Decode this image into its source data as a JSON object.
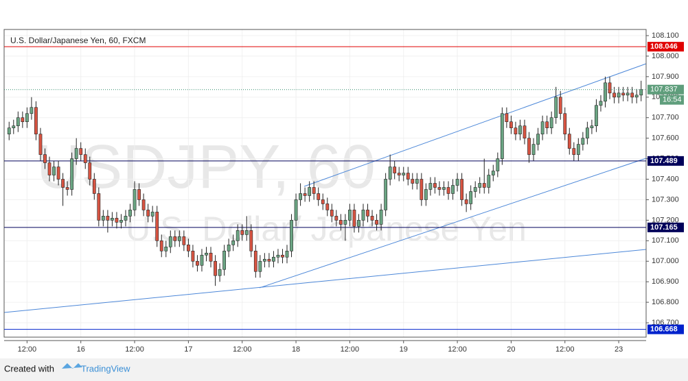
{
  "chart_data": {
    "type": "candlestick",
    "title": "U.S. Dollar/Japanese Yen, 60, FXCM",
    "watermark": "USDJPY, 60",
    "watermark_subtitle": "U.S. Dollar/ Japanese Yen",
    "footer": "Created with",
    "brand": "TradingView",
    "countdown": "16:54",
    "up_color": "#6ba583",
    "down_color": "#d75442",
    "categories": [
      null,
      null,
      null,
      null,
      "12:00",
      null,
      null,
      null,
      null,
      null,
      null,
      null,
      null,
      null,
      null,
      null,
      "16",
      null,
      null,
      null,
      null,
      null,
      null,
      null,
      null,
      null,
      null,
      null,
      "12:00",
      null,
      null,
      null,
      null,
      null,
      null,
      null,
      null,
      null,
      null,
      null,
      "17",
      null,
      null,
      null,
      null,
      null,
      null,
      null,
      null,
      null,
      null,
      null,
      "12:00",
      null,
      null,
      null,
      null,
      null,
      null,
      null,
      null,
      null,
      null,
      null,
      "18",
      null,
      null,
      null,
      null,
      null,
      null,
      null,
      null,
      null,
      null,
      null,
      "12:00",
      null,
      null,
      null,
      null,
      null,
      null,
      null,
      null,
      null,
      null,
      null,
      "19",
      null,
      null,
      null,
      null,
      null,
      null,
      null,
      null,
      null,
      null,
      null,
      "12:00",
      null,
      null,
      null,
      null,
      null,
      null,
      null,
      null,
      null,
      null,
      null,
      "20",
      null,
      null,
      null,
      null,
      null,
      null,
      null,
      null,
      null,
      null,
      null,
      "12:00",
      null,
      null,
      null,
      null,
      null,
      null,
      null,
      null,
      null,
      null,
      null,
      "23",
      null,
      null,
      null,
      null,
      null
    ],
    "open": [
      107.62,
      107.65,
      107.66,
      107.7,
      107.68,
      107.72,
      107.75,
      107.62,
      107.52,
      107.48,
      107.42,
      107.46,
      107.4,
      107.36,
      107.35,
      107.5,
      107.55,
      107.52,
      107.48,
      107.4,
      107.33,
      107.2,
      107.22,
      107.2,
      107.21,
      107.19,
      107.2,
      107.22,
      107.25,
      107.35,
      107.3,
      107.25,
      107.22,
      107.24,
      107.1,
      107.05,
      107.07,
      107.12,
      107.1,
      107.12,
      107.08,
      107.05,
      107.0,
      106.98,
      107.03,
      107.04,
      107.0,
      106.93,
      106.96,
      107.05,
      107.08,
      107.1,
      107.15,
      107.13,
      107.15,
      107.05,
      106.95,
      107.0,
      107.01,
      107.0,
      107.02,
      107.03,
      107.02,
      107.05,
      107.2,
      107.3,
      107.33,
      107.32,
      107.36,
      107.33,
      107.3,
      107.28,
      107.25,
      107.22,
      107.2,
      107.18,
      107.2,
      107.25,
      107.17,
      107.2,
      107.25,
      107.22,
      107.2,
      107.18,
      107.25,
      107.4,
      107.46,
      107.43,
      107.42,
      107.43,
      107.4,
      107.38,
      107.4,
      107.3,
      107.35,
      107.38,
      107.36,
      107.35,
      107.36,
      107.33,
      107.37,
      107.4,
      107.3,
      107.28,
      107.34,
      107.36,
      107.38,
      107.36,
      107.42,
      107.44,
      107.5,
      107.72,
      107.68,
      107.65,
      107.62,
      107.66,
      107.6,
      107.52,
      107.57,
      107.62,
      107.68,
      107.65,
      107.7,
      107.8,
      107.72,
      107.62,
      107.55,
      107.52,
      107.57,
      107.6,
      107.65,
      107.66,
      107.76,
      107.78,
      107.87,
      107.82,
      107.8,
      107.82,
      107.81,
      107.82,
      107.8,
      107.81
    ],
    "high": [
      107.68,
      107.69,
      107.73,
      107.73,
      107.75,
      107.8,
      107.78,
      107.65,
      107.55,
      107.51,
      107.49,
      107.49,
      107.43,
      107.39,
      107.53,
      107.6,
      107.58,
      107.55,
      107.51,
      107.43,
      107.36,
      107.25,
      107.25,
      107.24,
      107.24,
      107.23,
      107.25,
      107.28,
      107.39,
      107.38,
      107.33,
      107.28,
      107.27,
      107.27,
      107.13,
      107.1,
      107.15,
      107.15,
      107.15,
      107.15,
      107.11,
      107.08,
      107.03,
      107.06,
      107.07,
      107.07,
      107.03,
      106.99,
      107.08,
      107.11,
      107.13,
      107.18,
      107.18,
      107.22,
      107.18,
      107.08,
      107.03,
      107.04,
      107.04,
      107.05,
      107.06,
      107.06,
      107.08,
      107.23,
      107.33,
      107.38,
      107.36,
      107.39,
      107.39,
      107.36,
      107.33,
      107.31,
      107.28,
      107.25,
      107.23,
      107.23,
      107.28,
      107.28,
      107.23,
      107.28,
      107.28,
      107.25,
      107.23,
      107.28,
      107.43,
      107.52,
      107.49,
      107.46,
      107.46,
      107.46,
      107.43,
      107.43,
      107.43,
      107.38,
      107.41,
      107.41,
      107.39,
      107.39,
      107.39,
      107.4,
      107.43,
      107.43,
      107.33,
      107.37,
      107.39,
      107.41,
      107.5,
      107.45,
      107.47,
      107.53,
      107.75,
      107.75,
      107.71,
      107.68,
      107.69,
      107.69,
      107.63,
      107.6,
      107.65,
      107.71,
      107.71,
      107.73,
      107.85,
      107.83,
      107.75,
      107.65,
      107.58,
      107.6,
      107.63,
      107.68,
      107.69,
      107.79,
      107.81,
      107.9,
      107.9,
      107.85,
      107.85,
      107.85,
      107.85,
      107.85,
      107.84,
      107.88
    ],
    "low": [
      107.59,
      107.62,
      107.63,
      107.65,
      107.65,
      107.69,
      107.59,
      107.49,
      107.45,
      107.39,
      107.39,
      107.37,
      107.27,
      107.32,
      107.32,
      107.47,
      107.49,
      107.45,
      107.37,
      107.3,
      107.17,
      107.17,
      107.14,
      107.17,
      107.16,
      107.16,
      107.17,
      107.19,
      107.22,
      107.27,
      107.22,
      107.19,
      107.19,
      107.07,
      107.02,
      107.02,
      107.04,
      107.07,
      107.07,
      107.05,
      107.02,
      106.97,
      106.95,
      106.95,
      107.0,
      106.97,
      106.88,
      106.9,
      106.93,
      107.02,
      107.05,
      107.07,
      107.1,
      107.1,
      107.02,
      106.92,
      106.92,
      106.97,
      106.97,
      106.97,
      106.99,
      106.99,
      106.99,
      107.02,
      107.17,
      107.27,
      107.29,
      107.29,
      107.3,
      107.27,
      107.25,
      107.22,
      107.19,
      107.17,
      107.15,
      107.1,
      107.17,
      107.14,
      107.14,
      107.17,
      107.19,
      107.17,
      107.15,
      107.15,
      107.22,
      107.37,
      107.4,
      107.39,
      107.39,
      107.37,
      107.35,
      107.35,
      107.27,
      107.27,
      107.32,
      107.33,
      107.32,
      107.32,
      107.3,
      107.3,
      107.34,
      107.27,
      107.24,
      107.25,
      107.31,
      107.33,
      107.33,
      107.33,
      107.39,
      107.41,
      107.47,
      107.65,
      107.62,
      107.59,
      107.59,
      107.57,
      107.48,
      107.49,
      107.54,
      107.59,
      107.62,
      107.62,
      107.67,
      107.69,
      107.59,
      107.52,
      107.49,
      107.49,
      107.54,
      107.57,
      107.62,
      107.63,
      107.73,
      107.75,
      107.79,
      107.77,
      107.77,
      107.78,
      107.78,
      107.77,
      107.77,
      107.78
    ],
    "close": [
      107.65,
      107.66,
      107.7,
      107.68,
      107.72,
      107.75,
      107.62,
      107.52,
      107.48,
      107.42,
      107.46,
      107.4,
      107.36,
      107.35,
      107.5,
      107.55,
      107.52,
      107.48,
      107.4,
      107.33,
      107.2,
      107.22,
      107.2,
      107.21,
      107.19,
      107.2,
      107.22,
      107.25,
      107.35,
      107.3,
      107.25,
      107.22,
      107.24,
      107.1,
      107.05,
      107.07,
      107.12,
      107.1,
      107.12,
      107.08,
      107.05,
      107.0,
      106.98,
      107.03,
      107.04,
      107.0,
      106.93,
      106.96,
      107.05,
      107.08,
      107.1,
      107.15,
      107.13,
      107.15,
      107.05,
      106.95,
      107.0,
      107.01,
      107.0,
      107.02,
      107.03,
      107.02,
      107.05,
      107.2,
      107.3,
      107.33,
      107.32,
      107.36,
      107.33,
      107.3,
      107.28,
      107.25,
      107.22,
      107.2,
      107.18,
      107.2,
      107.25,
      107.17,
      107.2,
      107.25,
      107.22,
      107.2,
      107.18,
      107.25,
      107.4,
      107.46,
      107.43,
      107.42,
      107.43,
      107.4,
      107.38,
      107.4,
      107.3,
      107.35,
      107.38,
      107.36,
      107.35,
      107.36,
      107.33,
      107.37,
      107.4,
      107.3,
      107.28,
      107.34,
      107.36,
      107.38,
      107.36,
      107.42,
      107.44,
      107.5,
      107.72,
      107.68,
      107.65,
      107.62,
      107.66,
      107.6,
      107.52,
      107.57,
      107.62,
      107.68,
      107.65,
      107.7,
      107.8,
      107.72,
      107.62,
      107.55,
      107.52,
      107.57,
      107.6,
      107.65,
      107.66,
      107.76,
      107.78,
      107.87,
      107.82,
      107.8,
      107.82,
      107.81,
      107.82,
      107.8,
      107.81,
      107.837
    ],
    "levels": [
      108.046,
      107.489,
      107.165,
      106.668
    ],
    "level_colors": [
      "#e00000",
      "#00005a",
      "#00005a",
      "#0022cc"
    ],
    "ylim": [
      106.63,
      108.13
    ],
    "yticks": [
      {
        "value": 106.7,
        "label": "106.700"
      },
      {
        "value": 106.8,
        "label": "106.800"
      },
      {
        "value": 106.9,
        "label": "106.900"
      },
      {
        "value": 107.0,
        "label": "107.000"
      },
      {
        "value": 107.1,
        "label": "107.100"
      },
      {
        "value": 107.2,
        "label": "107.200"
      },
      {
        "value": 107.3,
        "label": "107.300"
      },
      {
        "value": 107.4,
        "label": "107.400"
      },
      {
        "value": 107.5,
        "label": "107.500"
      },
      {
        "value": 107.6,
        "label": "107.600"
      },
      {
        "value": 107.7,
        "label": "107.700"
      },
      {
        "value": 107.8,
        "label": "107.800"
      },
      {
        "value": 107.9,
        "label": "107.900"
      },
      {
        "value": 108.0,
        "label": "108.000"
      },
      {
        "value": 108.1,
        "label": "108.100"
      }
    ]
  }
}
